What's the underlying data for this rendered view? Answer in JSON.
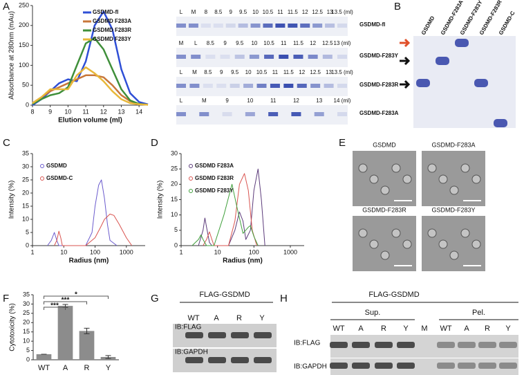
{
  "panel_labels": [
    "A",
    "B",
    "C",
    "D",
    "E",
    "F",
    "G",
    "H"
  ],
  "chart_data": [
    {
      "type": "line",
      "ylabel": "Absorbance at 280nm (mAu)",
      "xlabel": "Elution volume (ml)",
      "x": [
        8,
        8.5,
        9,
        9.5,
        10,
        10.5,
        11,
        11.5,
        12,
        12.5,
        13,
        13.5,
        14,
        14.5
      ],
      "xlim": [
        8,
        14.5
      ],
      "xticks": [
        8,
        9,
        10,
        11,
        12,
        13,
        14
      ],
      "ylim": [
        0,
        250
      ],
      "yticks": [
        0,
        50,
        100,
        150,
        200,
        250
      ],
      "legend": "upper right",
      "series": [
        {
          "name": "GSDMD-fl",
          "color": "#2f4fd6",
          "values": [
            0,
            15,
            35,
            55,
            65,
            60,
            110,
            200,
            235,
            190,
            90,
            30,
            8,
            2
          ]
        },
        {
          "name": "GSDMD F283A",
          "color": "#c8773a",
          "values": [
            5,
            20,
            35,
            45,
            55,
            65,
            75,
            75,
            70,
            50,
            25,
            10,
            3,
            1
          ]
        },
        {
          "name": "GSDMD F283R",
          "color": "#3f8f3a",
          "values": [
            3,
            15,
            25,
            30,
            45,
            100,
            155,
            168,
            140,
            90,
            40,
            12,
            3,
            1
          ]
        },
        {
          "name": "GSDMD F283Y",
          "color": "#e8b83a",
          "values": [
            5,
            20,
            40,
            40,
            40,
            75,
            95,
            80,
            60,
            35,
            15,
            5,
            2,
            1
          ]
        }
      ]
    },
    {
      "type": "line",
      "ylabel": "Intensity (%)",
      "xlabel": "Radius (nm)",
      "xlog": true,
      "xlim": [
        1,
        4000
      ],
      "xticks": [
        1,
        10,
        100,
        1000
      ],
      "ylim": [
        0,
        35
      ],
      "yticks": [
        0,
        5,
        10,
        15,
        20,
        25,
        30,
        35
      ],
      "legend": "upper left",
      "series": [
        {
          "name": "GSDMD",
          "color": "#6a5acd",
          "x": [
            3,
            4,
            5,
            6,
            7,
            10,
            50,
            80,
            100,
            130,
            160,
            200,
            250,
            300,
            500
          ],
          "values": [
            0,
            2,
            5,
            2,
            0,
            0,
            0,
            5,
            15,
            23,
            25,
            18,
            8,
            2,
            0
          ]
        },
        {
          "name": "GSDMD-C",
          "color": "#d9534f",
          "x": [
            5,
            6,
            7,
            8,
            9,
            10,
            50,
            100,
            150,
            200,
            300,
            400,
            600,
            1000,
            1500
          ],
          "values": [
            0,
            2,
            5.5,
            3,
            0,
            0,
            0,
            3,
            7,
            10,
            12,
            11.5,
            8,
            3,
            0
          ]
        }
      ]
    },
    {
      "type": "line",
      "ylabel": "Intensity (%)",
      "xlabel": "Radius (nm)",
      "xlog": true,
      "xlim": [
        1,
        2400
      ],
      "xticks": [
        1,
        10,
        100,
        1000
      ],
      "ylim": [
        0,
        30
      ],
      "yticks": [
        0,
        5,
        10,
        15,
        20,
        25,
        30
      ],
      "legend": "upper left",
      "series": [
        {
          "name": "GSDMD F283A",
          "color": "#5b3a7a",
          "x": [
            3,
            4,
            4.5,
            5,
            6,
            7,
            20,
            30,
            40,
            50,
            60,
            80,
            100,
            130,
            160,
            200
          ],
          "values": [
            0,
            5,
            9,
            6,
            1,
            0,
            0,
            5,
            11,
            8,
            2,
            5,
            18,
            25,
            15,
            0
          ]
        },
        {
          "name": "GSDMD F283R",
          "color": "#d9534f",
          "x": [
            4,
            5,
            6,
            7,
            8,
            20,
            30,
            40,
            55,
            70,
            90,
            120
          ],
          "values": [
            0,
            2,
            4.5,
            2,
            0,
            0,
            8,
            20,
            23.5,
            18,
            5,
            0
          ]
        },
        {
          "name": "GSDMD F283Y",
          "color": "#3f9f3a",
          "x": [
            2,
            3,
            3.5,
            4,
            5,
            8,
            15,
            25,
            35,
            50,
            70,
            80,
            100,
            130
          ],
          "values": [
            0,
            2,
            3.5,
            2,
            0,
            0,
            10,
            20,
            12,
            4,
            6,
            6.5,
            3,
            0
          ]
        }
      ]
    },
    {
      "type": "bar",
      "ylabel": "Cytotoxicity (%)",
      "categories": [
        "WT",
        "A",
        "R",
        "Y"
      ],
      "values": [
        3,
        29,
        15.5,
        1.5
      ],
      "errors": [
        0,
        0.8,
        1.5,
        0.8
      ],
      "color": "#8c8c8c",
      "ylim": [
        0,
        35
      ],
      "yticks": [
        0,
        5,
        10,
        15,
        20,
        25,
        30,
        35
      ],
      "annotations": [
        "***",
        "***",
        "*"
      ]
    }
  ],
  "gels": {
    "A": {
      "rows": [
        {
          "lanes": [
            "L",
            "M",
            "8",
            "8.5",
            "9",
            "9.5",
            "10",
            "10.5",
            "11",
            "11.5",
            "12",
            "12.5",
            "13",
            "13.5 (ml)"
          ],
          "name": "GSDMD-fl"
        },
        {
          "lanes": [
            "M",
            "L",
            "8.5",
            "9",
            "9.5",
            "10",
            "10.5",
            "11",
            "11.5",
            "12",
            "12.5",
            "13 (ml)"
          ],
          "name": "GSDMD-F283Y"
        },
        {
          "lanes": [
            "L",
            "M",
            "8.5",
            "9",
            "9.5",
            "10",
            "10.5",
            "11",
            "11.5",
            "12",
            "12.5",
            "13",
            "13.5 (ml)"
          ],
          "name": "GSDMD-F283R"
        },
        {
          "lanes": [
            "L",
            "M",
            "9",
            "10",
            "11",
            "12",
            "13",
            "14 (ml)"
          ],
          "name": "GSDMD-F283A"
        }
      ]
    },
    "B": {
      "lanes": [
        "GSDMD",
        "GSDMD-F283A",
        "GSDMD-F283Y",
        "GSDMD-F283R",
        "GSDMD-C"
      ]
    },
    "E": {
      "images": [
        "GSDMD",
        "GSDMD-F283A",
        "GSDMD-F283R",
        "GSDMD-F283Y"
      ]
    },
    "G": {
      "header": "FLAG-GSDMD",
      "lanes": [
        "WT",
        "A",
        "R",
        "Y"
      ],
      "rows": [
        "IB:FLAG",
        "IB:GAPDH"
      ]
    },
    "H": {
      "header": "FLAG-GSDMD",
      "groups": [
        "Sup.",
        "Pel."
      ],
      "lanes": [
        "WT",
        "A",
        "R",
        "Y",
        "M",
        "WT",
        "A",
        "R",
        "Y"
      ],
      "rows": [
        "IB:FLAG",
        "IB:GAPDH"
      ]
    }
  }
}
